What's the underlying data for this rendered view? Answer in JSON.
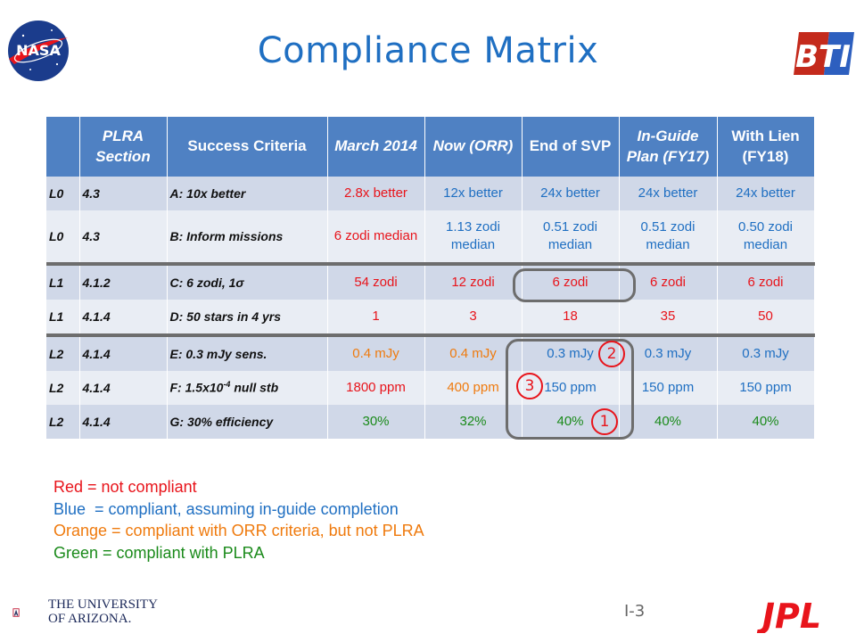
{
  "title": "Compliance Matrix",
  "logos": {
    "nasa_text": "NASA",
    "bti_text": "BTI",
    "university_line1": "THE UNIVERSITY",
    "university_line2": "OF ARIZONA.",
    "jpl_text": "JPL"
  },
  "table": {
    "headers": [
      "",
      "PLRA Section",
      "Success Criteria",
      "March 2014",
      "Now (ORR)",
      "End of SVP",
      "In-Guide Plan (FY17)",
      "With Lien (FY18)"
    ],
    "rows": [
      {
        "level": "L0",
        "section": "4.3",
        "criteria": "A: 10x better",
        "cells": [
          {
            "v": "2.8x better",
            "c": "red"
          },
          {
            "v": "12x better",
            "c": "blue"
          },
          {
            "v": "24x better",
            "c": "blue"
          },
          {
            "v": "24x better",
            "c": "blue"
          },
          {
            "v": "24x better",
            "c": "blue"
          }
        ]
      },
      {
        "level": "L0",
        "section": "4.3",
        "criteria": "B: Inform missions",
        "cells": [
          {
            "v": "6 zodi median",
            "c": "red"
          },
          {
            "v": "1.13 zodi median",
            "c": "blue"
          },
          {
            "v": "0.51 zodi median",
            "c": "blue"
          },
          {
            "v": "0.51 zodi median",
            "c": "blue"
          },
          {
            "v": "0.50 zodi median",
            "c": "blue"
          }
        ]
      },
      {
        "level": "L1",
        "section": "4.1.2",
        "criteria": "C: 6 zodi, 1σ",
        "cells": [
          {
            "v": "54 zodi",
            "c": "red"
          },
          {
            "v": "12 zodi",
            "c": "red"
          },
          {
            "v": "6 zodi",
            "c": "red"
          },
          {
            "v": "6 zodi",
            "c": "red"
          },
          {
            "v": "6 zodi",
            "c": "red"
          }
        ]
      },
      {
        "level": "L1",
        "section": "4.1.4",
        "criteria": "D: 50 stars in 4 yrs",
        "cells": [
          {
            "v": "1",
            "c": "red"
          },
          {
            "v": "3",
            "c": "red"
          },
          {
            "v": "18",
            "c": "red"
          },
          {
            "v": "35",
            "c": "red"
          },
          {
            "v": "50",
            "c": "red"
          }
        ]
      },
      {
        "level": "L2",
        "section": "4.1.4",
        "criteria": "E: 0.3 mJy sens.",
        "cells": [
          {
            "v": "0.4 mJy",
            "c": "orange"
          },
          {
            "v": "0.4 mJy",
            "c": "orange"
          },
          {
            "v": "0.3 mJy",
            "c": "blue"
          },
          {
            "v": "0.3 mJy",
            "c": "blue"
          },
          {
            "v": "0.3 mJy",
            "c": "blue"
          }
        ]
      },
      {
        "level": "L2",
        "section": "4.1.4",
        "criteria": "F: 1.5x10",
        "criteria_sup": "-4",
        "criteria_tail": " null stb",
        "cells": [
          {
            "v": "1800 ppm",
            "c": "red"
          },
          {
            "v": "400 ppm",
            "c": "orange"
          },
          {
            "v": "150 ppm",
            "c": "blue"
          },
          {
            "v": "150 ppm",
            "c": "blue"
          },
          {
            "v": "150 ppm",
            "c": "blue"
          }
        ]
      },
      {
        "level": "L2",
        "section": "4.1.4",
        "criteria": "G: 30% efficiency",
        "cells": [
          {
            "v": "30%",
            "c": "green"
          },
          {
            "v": "32%",
            "c": "green"
          },
          {
            "v": "40%",
            "c": "green"
          },
          {
            "v": "40%",
            "c": "green"
          },
          {
            "v": "40%",
            "c": "green"
          }
        ]
      }
    ]
  },
  "callouts": [
    "2",
    "3",
    "1"
  ],
  "legend": [
    {
      "text": "Red = not compliant",
      "color": "#e8141b"
    },
    {
      "text": "Blue  = compliant, assuming in-guide completion",
      "color": "#1f6fc2"
    },
    {
      "text": "Orange = compliant with ORR criteria, but not PLRA",
      "color": "#ef7a0d"
    },
    {
      "text": "Green = compliant with PLRA",
      "color": "#1a8a1a"
    }
  ],
  "page_number": "I-3",
  "colors": {
    "header_bg": "#4f81c3",
    "row_odd": "#d0d8e8",
    "row_even": "#e9edf4",
    "title": "#1f6fc2",
    "callout": "#e8141b"
  }
}
